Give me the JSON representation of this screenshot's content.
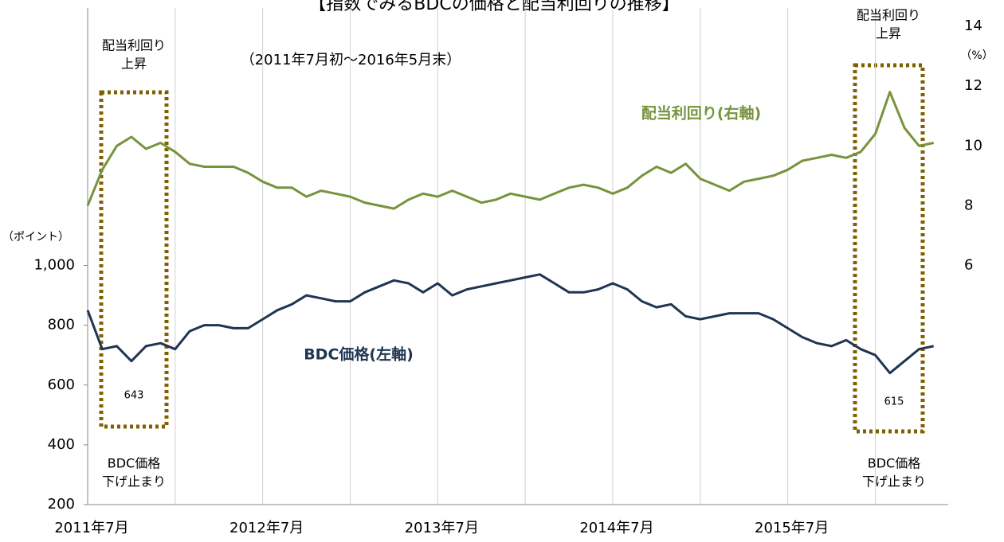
{
  "chart_data": {
    "type": "line",
    "title": "【指数でみるBDCの価格と配当利回りの推移】",
    "subtitle": "（2011年7月初～2016年5月末）",
    "y_axis_label": "（ポイント）",
    "y2_axis_label": "（%）",
    "x": [
      "2011-07",
      "2011-08",
      "2011-09",
      "2011-10",
      "2011-11",
      "2011-12",
      "2012-01",
      "2012-02",
      "2012-03",
      "2012-04",
      "2012-05",
      "2012-06",
      "2012-07",
      "2012-08",
      "2012-09",
      "2012-10",
      "2012-11",
      "2012-12",
      "2013-01",
      "2013-02",
      "2013-03",
      "2013-04",
      "2013-05",
      "2013-06",
      "2013-07",
      "2013-08",
      "2013-09",
      "2013-10",
      "2013-11",
      "2013-12",
      "2014-01",
      "2014-02",
      "2014-03",
      "2014-04",
      "2014-05",
      "2014-06",
      "2014-07",
      "2014-08",
      "2014-09",
      "2014-10",
      "2014-11",
      "2014-12",
      "2015-01",
      "2015-02",
      "2015-03",
      "2015-04",
      "2015-05",
      "2015-06",
      "2015-07",
      "2015-08",
      "2015-09",
      "2015-10",
      "2015-11",
      "2015-12",
      "2016-01",
      "2016-02",
      "2016-03",
      "2016-04",
      "2016-05"
    ],
    "series": [
      {
        "name": "配当利回り(右軸)",
        "color": "#77933c",
        "axis": "y2",
        "values": [
          8.0,
          9.2,
          10.0,
          10.3,
          9.9,
          10.1,
          9.8,
          9.4,
          9.3,
          9.3,
          9.3,
          9.1,
          8.8,
          8.6,
          8.6,
          8.3,
          8.5,
          8.4,
          8.3,
          8.1,
          8.0,
          7.9,
          8.2,
          8.4,
          8.3,
          8.5,
          8.3,
          8.1,
          8.2,
          8.4,
          8.3,
          8.2,
          8.4,
          8.6,
          8.7,
          8.6,
          8.4,
          8.6,
          9.0,
          9.3,
          9.1,
          9.4,
          8.9,
          8.7,
          8.5,
          8.8,
          8.9,
          9.0,
          9.2,
          9.5,
          9.6,
          9.7,
          9.6,
          9.8,
          10.4,
          11.8,
          10.6,
          10.0,
          10.1
        ]
      },
      {
        "name": "BDC価格(左軸)",
        "color": "#1f3552",
        "values": [
          850,
          720,
          730,
          680,
          730,
          740,
          720,
          780,
          800,
          800,
          790,
          790,
          820,
          850,
          870,
          900,
          890,
          880,
          880,
          910,
          930,
          950,
          940,
          910,
          940,
          900,
          920,
          930,
          940,
          950,
          960,
          970,
          940,
          910,
          910,
          920,
          940,
          920,
          880,
          860,
          870,
          830,
          820,
          830,
          840,
          840,
          840,
          820,
          790,
          760,
          740,
          730,
          750,
          720,
          700,
          640,
          680,
          720,
          730
        ]
      }
    ],
    "xlim": [
      "2011-07",
      "2016-06"
    ],
    "xticks": [
      {
        "value": "2011-07",
        "label": "2011年7月"
      },
      {
        "value": "2012-01",
        "label": null
      },
      {
        "value": "2012-07",
        "label": "2012年7月"
      },
      {
        "value": "2013-01",
        "label": null
      },
      {
        "value": "2013-07",
        "label": "2013年7月"
      },
      {
        "value": "2014-01",
        "label": null
      },
      {
        "value": "2014-07",
        "label": "2014年7月"
      },
      {
        "value": "2015-01",
        "label": null
      },
      {
        "value": "2015-07",
        "label": "2015年7月"
      },
      {
        "value": "2016-01",
        "label": null
      }
    ],
    "ylim": [
      200,
      1800
    ],
    "yticks": [
      200,
      400,
      600,
      {
        "value": 800,
        "label": "800"
      },
      {
        "value": 1000,
        "label": "1,000"
      }
    ],
    "y2lim": [
      -2,
      14
    ],
    "y2ticks": [
      6,
      8,
      10,
      12,
      14
    ],
    "grid": true,
    "annotations": [
      {
        "lines": [
          "配当利回り",
          "上昇"
        ]
      },
      {
        "lines": [
          "BDC価格",
          "下げ止まり"
        ]
      },
      {
        "lines": [
          "643"
        ]
      },
      {
        "lines": [
          "配当利回り",
          "上昇"
        ]
      },
      {
        "lines": [
          "BDC価格",
          "下げ止まり"
        ]
      },
      {
        "lines": [
          "615"
        ]
      }
    ]
  }
}
